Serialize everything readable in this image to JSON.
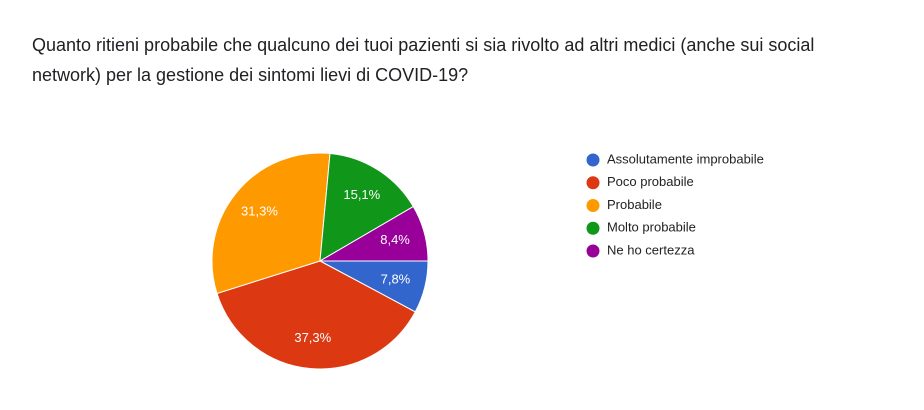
{
  "chart_data": {
    "type": "pie",
    "title": "Quanto ritieni probabile che qualcuno dei tuoi pazienti si sia rivolto ad altri medici (anche sui social network) per la gestione dei sintomi lievi di COVID-19?",
    "categories": [
      "Assolutamente improbabile",
      "Poco probabile",
      "Probabile",
      "Molto probabile",
      "Ne ho certezza"
    ],
    "values": [
      7.8,
      37.3,
      31.3,
      15.1,
      8.4
    ],
    "value_labels": [
      "7,8%",
      "37,3%",
      "31,3%",
      "15,1%",
      "8,4%"
    ],
    "colors": [
      "#3366cc",
      "#dc3912",
      "#ff9900",
      "#109618",
      "#990099"
    ],
    "legend": "right"
  }
}
